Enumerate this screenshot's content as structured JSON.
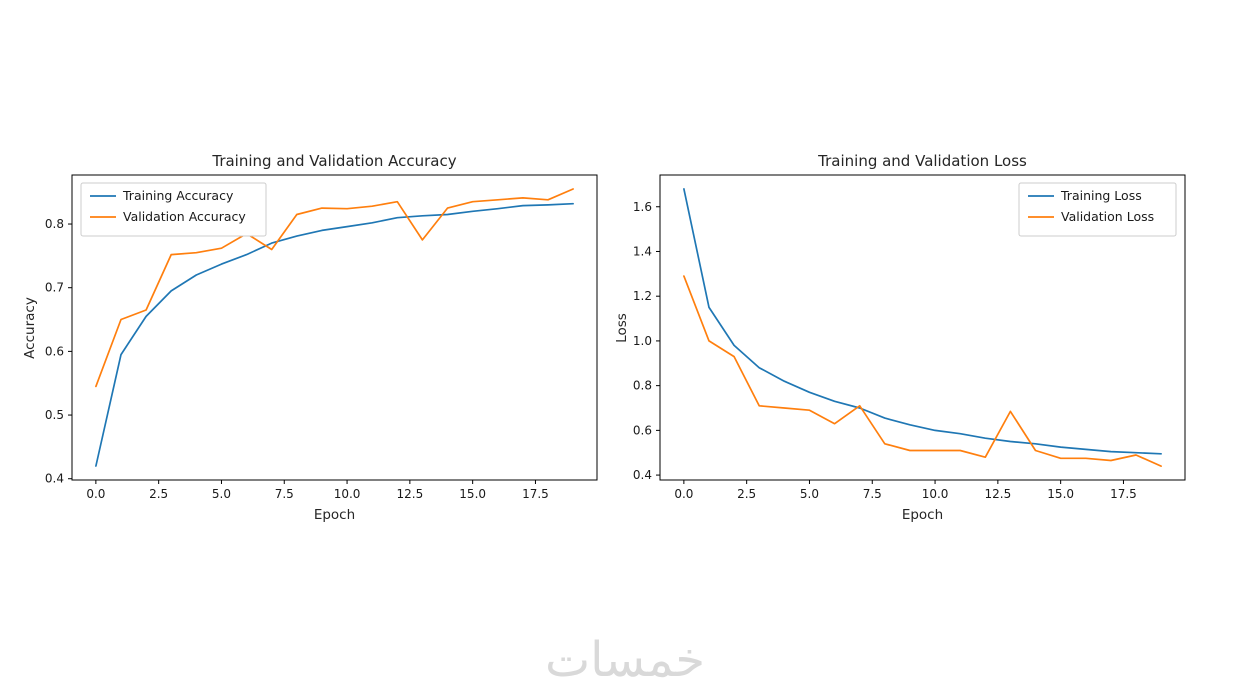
{
  "figure": {
    "background": "#ffffff",
    "watermark": "خمسات"
  },
  "chart_data": [
    {
      "type": "line",
      "title": "Training and Validation Accuracy",
      "xlabel": "Epoch",
      "ylabel": "Accuracy",
      "grid": false,
      "legend_position": "upper-left",
      "xlim": [
        -0.95,
        19.95
      ],
      "ylim": [
        0.398,
        0.877
      ],
      "xticks": [
        0,
        2.5,
        5,
        7.5,
        10,
        12.5,
        15,
        17.5
      ],
      "xtick_labels": [
        "0.0",
        "2.5",
        "5.0",
        "7.5",
        "10.0",
        "12.5",
        "15.0",
        "17.5"
      ],
      "yticks": [
        0.4,
        0.5,
        0.6,
        0.7,
        0.8
      ],
      "ytick_labels": [
        "0.4",
        "0.5",
        "0.6",
        "0.7",
        "0.8"
      ],
      "x": [
        0,
        1,
        2,
        3,
        4,
        5,
        6,
        7,
        8,
        9,
        10,
        11,
        12,
        13,
        14,
        15,
        16,
        17,
        18,
        19
      ],
      "series": [
        {
          "name": "Training Accuracy",
          "color": "#1f77b4",
          "values": [
            0.42,
            0.595,
            0.655,
            0.695,
            0.72,
            0.737,
            0.752,
            0.77,
            0.781,
            0.79,
            0.796,
            0.802,
            0.81,
            0.813,
            0.815,
            0.82,
            0.824,
            0.829,
            0.83,
            0.832
          ]
        },
        {
          "name": "Validation Accuracy",
          "color": "#ff7f0e",
          "values": [
            0.545,
            0.65,
            0.665,
            0.752,
            0.755,
            0.762,
            0.785,
            0.76,
            0.815,
            0.825,
            0.824,
            0.828,
            0.835,
            0.775,
            0.825,
            0.835,
            0.838,
            0.841,
            0.838,
            0.855
          ]
        }
      ]
    },
    {
      "type": "line",
      "title": "Training and Validation Loss",
      "xlabel": "Epoch",
      "ylabel": "Loss",
      "grid": false,
      "legend_position": "upper-right",
      "xlim": [
        -0.95,
        19.95
      ],
      "ylim": [
        0.378,
        1.742
      ],
      "xticks": [
        0,
        2.5,
        5,
        7.5,
        10,
        12.5,
        15,
        17.5
      ],
      "xtick_labels": [
        "0.0",
        "2.5",
        "5.0",
        "7.5",
        "10.0",
        "12.5",
        "15.0",
        "17.5"
      ],
      "yticks": [
        0.4,
        0.6,
        0.8,
        1.0,
        1.2,
        1.4,
        1.6
      ],
      "ytick_labels": [
        "0.4",
        "0.6",
        "0.8",
        "1.0",
        "1.2",
        "1.4",
        "1.6"
      ],
      "x": [
        0,
        1,
        2,
        3,
        4,
        5,
        6,
        7,
        8,
        9,
        10,
        11,
        12,
        13,
        14,
        15,
        16,
        17,
        18,
        19
      ],
      "series": [
        {
          "name": "Training Loss",
          "color": "#1f77b4",
          "values": [
            1.68,
            1.15,
            0.98,
            0.88,
            0.82,
            0.77,
            0.73,
            0.7,
            0.655,
            0.625,
            0.6,
            0.585,
            0.565,
            0.55,
            0.54,
            0.525,
            0.515,
            0.505,
            0.5,
            0.495
          ]
        },
        {
          "name": "Validation Loss",
          "color": "#ff7f0e",
          "values": [
            1.29,
            1.0,
            0.93,
            0.71,
            0.7,
            0.69,
            0.63,
            0.71,
            0.54,
            0.51,
            0.51,
            0.51,
            0.48,
            0.685,
            0.51,
            0.475,
            0.475,
            0.465,
            0.49,
            0.44
          ]
        }
      ]
    }
  ]
}
